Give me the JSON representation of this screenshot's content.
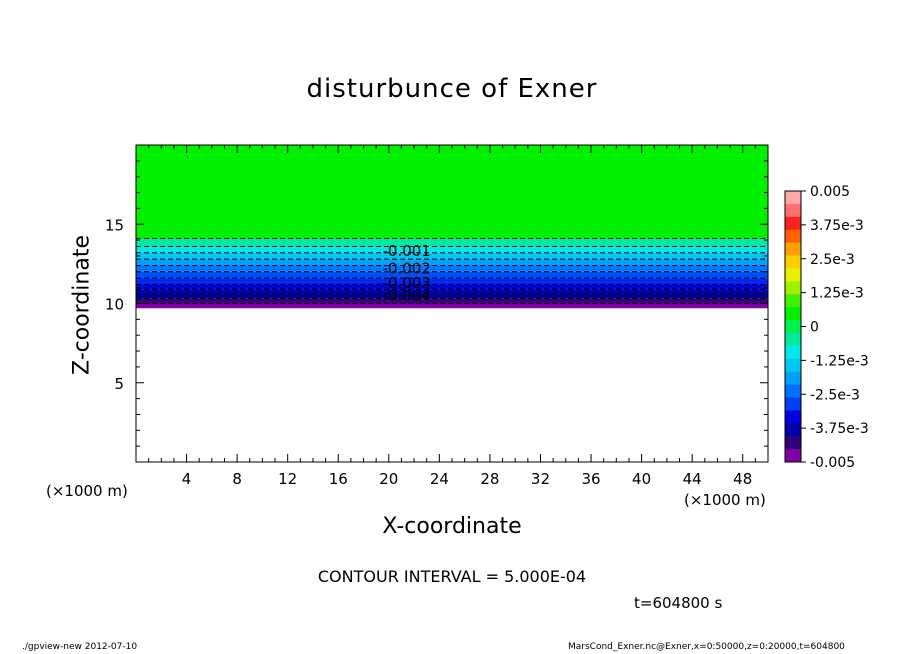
{
  "chart_data": {
    "type": "contour",
    "title": "disturbunce of Exner",
    "xlabel": "X-coordinate",
    "ylabel": "Z-coordinate",
    "x_unit_left": "(×1000 m)",
    "x_unit_right": "(×1000 m)",
    "xlim": [
      0,
      50
    ],
    "ylim": [
      0,
      20
    ],
    "xticks": [
      4,
      8,
      12,
      16,
      20,
      24,
      28,
      32,
      36,
      40,
      44,
      48
    ],
    "yticks": [
      5,
      10,
      15
    ],
    "contour_labels": [
      {
        "text": "-0.001",
        "x": 19.5,
        "z": 13.3
      },
      {
        "text": "-0.002",
        "x": 19.5,
        "z": 12.2
      },
      {
        "text": "-0.003",
        "x": 19.5,
        "z": 11.3
      },
      {
        "text": "-0.004",
        "x": 19.5,
        "z": 10.5
      }
    ],
    "contour_levels_z": [
      14.1,
      13.6,
      13.2,
      12.8,
      12.4,
      12.0,
      11.6,
      11.2,
      10.9,
      10.6,
      10.3,
      10.0
    ],
    "field_bands": [
      {
        "z0": 14.1,
        "z1": 20.0,
        "color": "#00f000"
      },
      {
        "z0": 13.6,
        "z1": 14.1,
        "color": "#00eaa0"
      },
      {
        "z0": 13.2,
        "z1": 13.6,
        "color": "#00e8e8"
      },
      {
        "z0": 12.8,
        "z1": 13.2,
        "color": "#00c8f0"
      },
      {
        "z0": 12.4,
        "z1": 12.8,
        "color": "#00a0ff"
      },
      {
        "z0": 12.0,
        "z1": 12.4,
        "color": "#0078ff"
      },
      {
        "z0": 11.6,
        "z1": 12.0,
        "color": "#0050f8"
      },
      {
        "z0": 11.2,
        "z1": 11.6,
        "color": "#0028f0"
      },
      {
        "z0": 10.9,
        "z1": 11.2,
        "color": "#0000e0"
      },
      {
        "z0": 10.6,
        "z1": 10.9,
        "color": "#0000b8"
      },
      {
        "z0": 10.3,
        "z1": 10.6,
        "color": "#000090"
      },
      {
        "z0": 10.0,
        "z1": 10.3,
        "color": "#3c0080"
      },
      {
        "z0": 9.7,
        "z1": 10.0,
        "color": "#8000a8"
      }
    ],
    "colorbar": {
      "tick_labels": [
        "0.005",
        "3.75e-3",
        "2.5e-3",
        "1.25e-3",
        "0",
        "-1.25e-3",
        "-2.5e-3",
        "-3.75e-3",
        "-0.005"
      ],
      "colors": [
        "#ffa8a8",
        "#ff7070",
        "#ff2020",
        "#ff6000",
        "#ffa000",
        "#ffd000",
        "#e8f000",
        "#a0f000",
        "#40f000",
        "#00f000",
        "#00f050",
        "#00eaa0",
        "#00e8e8",
        "#00c8f0",
        "#00a0ff",
        "#0070ff",
        "#0040f0",
        "#0000e0",
        "#0000a8",
        "#30007c",
        "#8000a8"
      ]
    },
    "contour_interval_text": "CONTOUR INTERVAL = 5.000E-04",
    "time_text": "t=604800 s"
  },
  "footer": {
    "left": "./gpview-new  2012-07-10",
    "right": "MarsCond_Exner.nc@Exner,x=0:50000,z=0:20000,t=604800"
  }
}
